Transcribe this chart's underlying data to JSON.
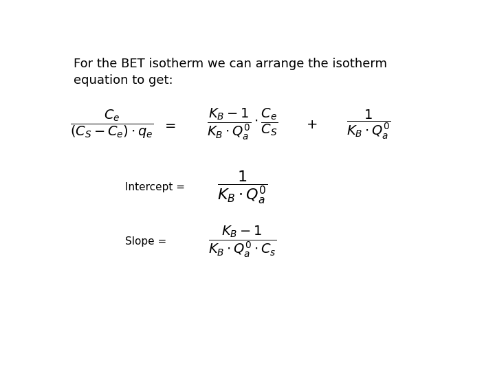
{
  "background_color": "#ffffff",
  "text_color": "#000000",
  "intro_text_line1": "For the BET isotherm we can arrange the isotherm",
  "intro_text_line2": "equation to get:",
  "intercept_label": "Intercept =",
  "slope_label": "Slope =",
  "intro_fontsize": 13,
  "eq_fontsize": 14,
  "label_fontsize": 11
}
